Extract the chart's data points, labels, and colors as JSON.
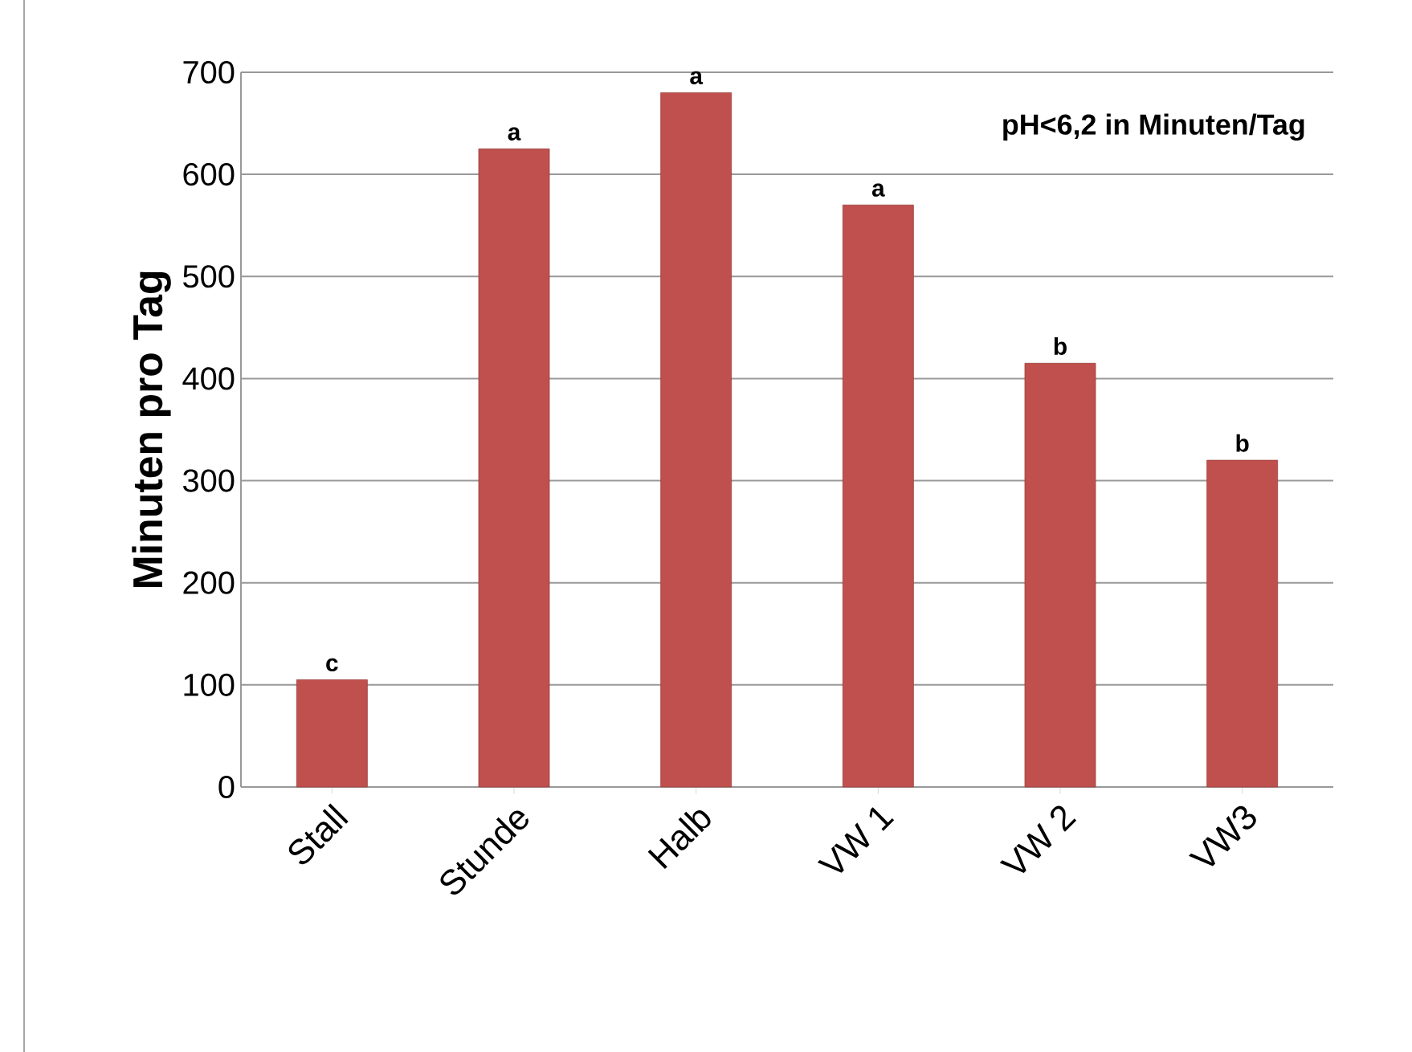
{
  "chart_data": {
    "type": "bar",
    "title": "pH<6,2 in Minuten/Tag",
    "ylabel": "Minuten pro Tag",
    "categories": [
      "Stall",
      "Stunde",
      "Halb",
      "VW 1",
      "VW 2",
      "VW3"
    ],
    "values": [
      105,
      625,
      680,
      570,
      415,
      320
    ],
    "color": "#c0504d",
    "ylim": [
      0,
      700
    ],
    "yticks": [
      0,
      100,
      200,
      300,
      400,
      500,
      600,
      700
    ],
    "grid": "y",
    "annotations": [
      {
        "text": "c",
        "x": "Stall",
        "y": 105
      },
      {
        "text": "a",
        "x": "Stunde",
        "y": 625
      },
      {
        "text": "a",
        "x": "Halb",
        "y": 680
      },
      {
        "text": "a",
        "x": "VW 1",
        "y": 570
      },
      {
        "text": "b",
        "x": "VW 2",
        "y": 415
      },
      {
        "text": "b",
        "x": "VW3",
        "y": 320
      }
    ]
  }
}
